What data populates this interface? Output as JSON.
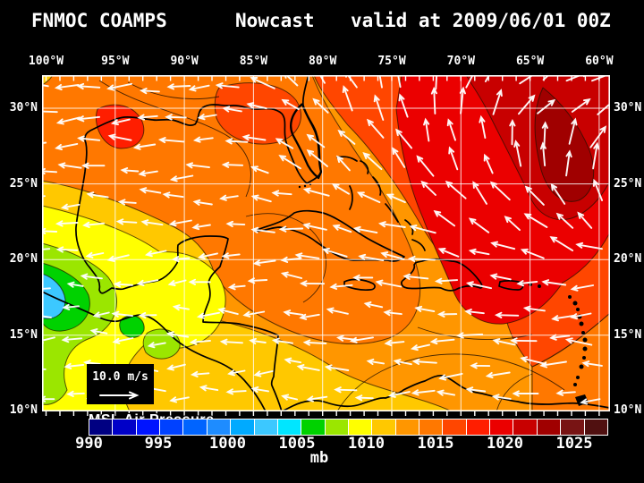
{
  "header": {
    "product": "FNMOC COAMPS",
    "mode": "Nowcast",
    "valid": "valid at 2009/06/01 00Z"
  },
  "map": {
    "field_label": "MSL Air Pressure",
    "wind_legend": {
      "label": "10.0 m/s"
    },
    "axes": {
      "longitude_labels": [
        "100°W",
        "95°W",
        "90°W",
        "85°W",
        "80°W",
        "75°W",
        "70°W",
        "65°W",
        "60°W"
      ],
      "latitude_labels_left": [
        "30°N",
        "25°N",
        "20°N",
        "15°N",
        "10°N"
      ],
      "latitude_labels_right": [
        "30°N",
        "25°N",
        "20°N",
        "15°N",
        "10°N"
      ]
    }
  },
  "colorbar": {
    "unit": "mb",
    "tick_labels": [
      "990",
      "995",
      "1000",
      "1005",
      "1010",
      "1015",
      "1020",
      "1025"
    ],
    "colors": [
      "#000082",
      "#0000C8",
      "#0014FF",
      "#0041FF",
      "#0064FF",
      "#1E8CFF",
      "#00AAFF",
      "#3CC8FF",
      "#00E6FF",
      "#00D200",
      "#9BE600",
      "#FFFF00",
      "#FFC800",
      "#FF9600",
      "#FF7800",
      "#FF4600",
      "#FF1E00",
      "#EB0000",
      "#C80000",
      "#A00000",
      "#781414",
      "#501010"
    ]
  },
  "colors": {
    "text": "#FFFFFF",
    "background": "#000000"
  }
}
